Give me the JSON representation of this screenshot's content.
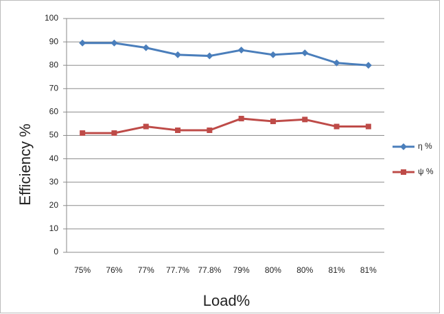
{
  "chart_data": {
    "type": "line",
    "x_label": "Load%",
    "y_label": "Efficiency %",
    "categories": [
      "75%",
      "76%",
      "77%",
      "77.7%",
      "77.8%",
      "79%",
      "80%",
      "80%",
      "81%",
      "81%"
    ],
    "series": [
      {
        "name": "η %",
        "color": "#4a7ebb",
        "marker": "diamond",
        "values": [
          89.5,
          89.5,
          87.5,
          84.5,
          84,
          86.5,
          84.5,
          85.3,
          81,
          80
        ]
      },
      {
        "name": "ψ %",
        "color": "#be4b48",
        "marker": "square",
        "values": [
          51,
          51,
          53.8,
          52.2,
          52.2,
          57.2,
          56,
          56.8,
          53.8,
          53.8
        ]
      }
    ],
    "ylim": [
      0,
      100
    ],
    "yticks": [
      0,
      10,
      20,
      30,
      40,
      50,
      60,
      70,
      80,
      90,
      100
    ],
    "grid": true,
    "legend": "right"
  }
}
